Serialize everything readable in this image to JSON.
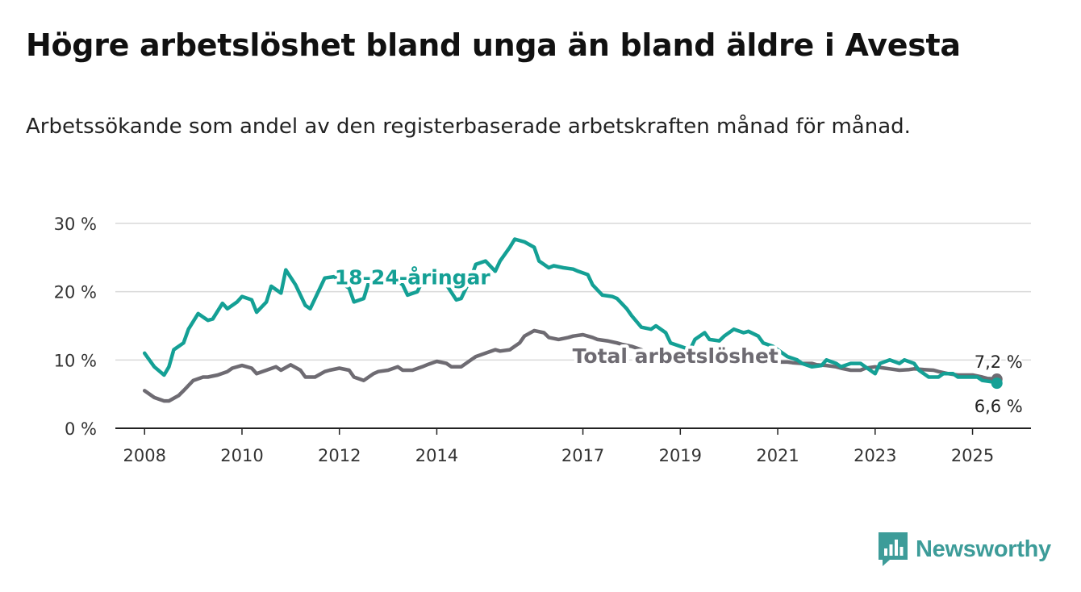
{
  "header": {
    "title": "Högre arbetslöshet bland unga än bland äldre i Avesta",
    "subtitle": "Arbetssökande som andel av den registerbaserade arbetskraften månad för månad."
  },
  "branding": {
    "logo_text": "Newsworthy",
    "icon": "bar-chart-icon",
    "color": "#3d9c99"
  },
  "chart_data": {
    "type": "line",
    "title": "Högre arbetslöshet bland unga än bland äldre i Avesta",
    "subtitle": "Arbetssökande som andel av den registerbaserade arbetskraften månad för månad.",
    "xlabel": "",
    "ylabel": "",
    "xlim": [
      2007.4,
      2026.2
    ],
    "ylim": [
      0,
      30
    ],
    "x_ticks": [
      2008,
      2010,
      2012,
      2014,
      2017,
      2019,
      2021,
      2023,
      2025
    ],
    "x_tick_labels": [
      "2008",
      "2010",
      "2012",
      "2014",
      "2017",
      "2019",
      "2021",
      "2023",
      "2025"
    ],
    "y_ticks": [
      0,
      10,
      20,
      30
    ],
    "y_tick_labels": [
      "0 %",
      "10 %",
      "20 %",
      "30 %"
    ],
    "grid": true,
    "series": [
      {
        "name": "18-24-åringar",
        "color": "#14a095",
        "x": [
          2008.0,
          2008.2,
          2008.4,
          2008.5,
          2008.6,
          2008.8,
          2008.9,
          2009.1,
          2009.3,
          2009.4,
          2009.6,
          2009.7,
          2009.9,
          2010.0,
          2010.2,
          2010.3,
          2010.5,
          2010.6,
          2010.8,
          2010.9,
          2011.1,
          2011.3,
          2011.4,
          2011.6,
          2011.7,
          2011.9,
          2012.0,
          2012.2,
          2012.3,
          2012.5,
          2012.6,
          2012.8,
          2012.9,
          2013.1,
          2013.3,
          2013.4,
          2013.6,
          2013.7,
          2013.9,
          2014.0,
          2014.2,
          2014.4,
          2014.5,
          2014.7,
          2014.8,
          2015.0,
          2015.2,
          2015.3,
          2015.5,
          2015.6,
          2015.8,
          2016.0,
          2016.1,
          2016.3,
          2016.4,
          2016.6,
          2016.8,
          2016.9,
          2017.1,
          2017.2,
          2017.4,
          2017.6,
          2017.7,
          2017.9,
          2018.0,
          2018.2,
          2018.4,
          2018.5,
          2018.7,
          2018.8,
          2019.0,
          2019.2,
          2019.3,
          2019.5,
          2019.6,
          2019.8,
          2019.9,
          2020.1,
          2020.3,
          2020.4,
          2020.6,
          2020.7,
          2020.9,
          2021.1,
          2021.2,
          2021.4,
          2021.5,
          2021.7,
          2021.9,
          2022.0,
          2022.2,
          2022.3,
          2022.5,
          2022.7,
          2022.8,
          2023.0,
          2023.1,
          2023.3,
          2023.5,
          2023.6,
          2023.8,
          2023.9,
          2024.1,
          2024.3,
          2024.4,
          2024.6,
          2024.7,
          2024.9,
          2025.1,
          2025.2,
          2025.4,
          2025.5
        ],
        "values": [
          11.0,
          9.0,
          7.8,
          9.0,
          11.5,
          12.5,
          14.5,
          16.8,
          15.8,
          16.0,
          18.3,
          17.5,
          18.5,
          19.3,
          18.8,
          17.0,
          18.5,
          20.8,
          19.8,
          23.2,
          21.0,
          18.0,
          17.5,
          20.5,
          22.0,
          22.2,
          21.5,
          20.5,
          18.5,
          19.0,
          21.3,
          22.3,
          22.5,
          22.0,
          21.0,
          19.5,
          20.0,
          21.5,
          23.0,
          22.8,
          21.0,
          18.8,
          19.0,
          22.0,
          24.0,
          24.5,
          23.0,
          24.5,
          26.5,
          27.7,
          27.3,
          26.5,
          24.5,
          23.5,
          23.8,
          23.5,
          23.3,
          23.0,
          22.5,
          21.0,
          19.5,
          19.3,
          19.0,
          17.5,
          16.5,
          14.8,
          14.5,
          15.0,
          14.0,
          12.5,
          12.0,
          11.5,
          13.0,
          14.0,
          13.0,
          12.8,
          13.5,
          14.5,
          14.0,
          14.2,
          13.5,
          12.5,
          12.0,
          11.0,
          10.5,
          10.0,
          9.5,
          9.0,
          9.2,
          10.0,
          9.5,
          9.0,
          9.5,
          9.5,
          9.0,
          8.0,
          9.5,
          10.0,
          9.5,
          10.0,
          9.5,
          8.5,
          7.5,
          7.5,
          8.0,
          8.0,
          7.5,
          7.5,
          7.5,
          7.0,
          6.8,
          6.6
        ]
      },
      {
        "name": "Total arbetslöshet",
        "color": "#6e6b72",
        "x": [
          2008.0,
          2008.2,
          2008.4,
          2008.5,
          2008.7,
          2008.8,
          2009.0,
          2009.2,
          2009.3,
          2009.5,
          2009.7,
          2009.8,
          2010.0,
          2010.2,
          2010.3,
          2010.5,
          2010.7,
          2010.8,
          2011.0,
          2011.2,
          2011.3,
          2011.5,
          2011.7,
          2011.8,
          2012.0,
          2012.2,
          2012.3,
          2012.5,
          2012.7,
          2012.8,
          2013.0,
          2013.2,
          2013.3,
          2013.5,
          2013.7,
          2013.8,
          2014.0,
          2014.2,
          2014.3,
          2014.5,
          2014.7,
          2014.8,
          2015.0,
          2015.2,
          2015.3,
          2015.5,
          2015.7,
          2015.8,
          2016.0,
          2016.2,
          2016.3,
          2016.5,
          2016.7,
          2016.8,
          2017.0,
          2017.2,
          2017.3,
          2017.5,
          2017.7,
          2017.8,
          2018.0,
          2018.2,
          2018.3,
          2018.5,
          2018.7,
          2018.8,
          2019.0,
          2019.2,
          2019.3,
          2019.5,
          2019.7,
          2019.8,
          2020.0,
          2020.2,
          2020.3,
          2020.5,
          2020.7,
          2020.8,
          2021.0,
          2021.2,
          2021.3,
          2021.5,
          2021.7,
          2021.8,
          2022.0,
          2022.2,
          2022.3,
          2022.5,
          2022.7,
          2022.8,
          2023.0,
          2023.2,
          2023.3,
          2023.5,
          2023.7,
          2023.8,
          2024.0,
          2024.2,
          2024.3,
          2024.5,
          2024.7,
          2024.8,
          2025.0,
          2025.2,
          2025.3,
          2025.5
        ],
        "values": [
          5.5,
          4.5,
          4.0,
          4.0,
          4.8,
          5.5,
          7.0,
          7.5,
          7.5,
          7.8,
          8.3,
          8.8,
          9.2,
          8.8,
          8.0,
          8.5,
          9.0,
          8.5,
          9.3,
          8.5,
          7.5,
          7.5,
          8.3,
          8.5,
          8.8,
          8.5,
          7.5,
          7.0,
          8.0,
          8.3,
          8.5,
          9.0,
          8.5,
          8.5,
          9.0,
          9.3,
          9.8,
          9.5,
          9.0,
          9.0,
          10.0,
          10.5,
          11.0,
          11.5,
          11.3,
          11.5,
          12.5,
          13.5,
          14.3,
          14.0,
          13.3,
          13.0,
          13.3,
          13.5,
          13.7,
          13.3,
          13.0,
          12.8,
          12.5,
          12.3,
          12.0,
          11.5,
          11.0,
          10.8,
          10.8,
          10.5,
          10.3,
          10.0,
          10.0,
          10.0,
          10.0,
          10.2,
          10.3,
          10.0,
          9.8,
          9.8,
          9.8,
          9.8,
          9.7,
          9.7,
          9.6,
          9.5,
          9.5,
          9.3,
          9.2,
          9.0,
          8.8,
          8.5,
          8.5,
          8.8,
          9.0,
          8.8,
          8.7,
          8.5,
          8.6,
          8.7,
          8.6,
          8.5,
          8.3,
          8.0,
          7.8,
          7.8,
          7.8,
          7.5,
          7.3,
          7.2
        ]
      }
    ],
    "annotations": [
      {
        "series": "18-24-åringar",
        "text": "18-24-åringar",
        "x": 2013.5,
        "y": 22.0
      },
      {
        "series": "Total arbetslöshet",
        "text": "Total arbetslöshet",
        "x": 2018.9,
        "y": 10.5
      },
      {
        "series": "Total arbetslöshet",
        "text": "7,2 %",
        "x": 2025.5,
        "y": 7.2
      },
      {
        "series": "18-24-åringar",
        "text": "6,6 %",
        "x": 2025.5,
        "y": 6.6
      }
    ]
  }
}
